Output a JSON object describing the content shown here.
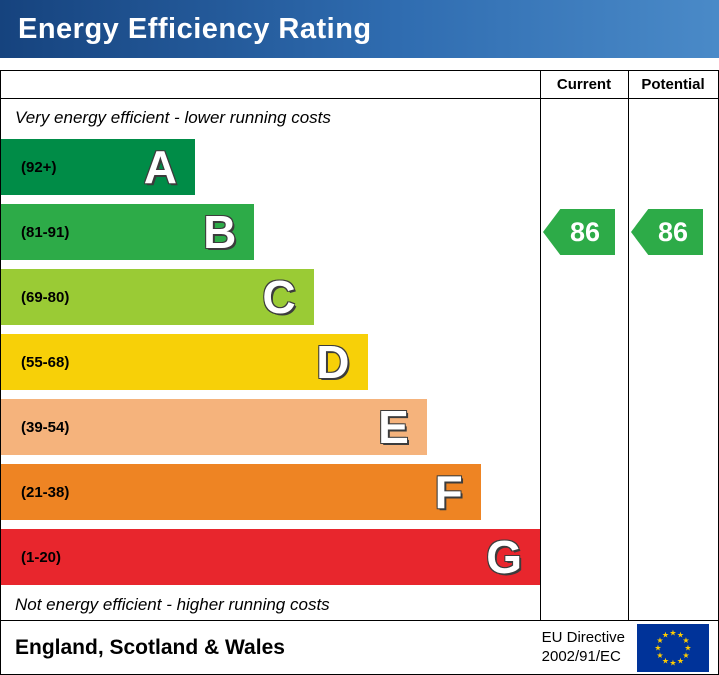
{
  "header": {
    "title": "Energy Efficiency Rating"
  },
  "columns": {
    "current": "Current",
    "potential": "Potential"
  },
  "notes": {
    "top": "Very energy efficient - lower running costs",
    "bottom": "Not energy efficient - higher running costs"
  },
  "bands": [
    {
      "letter": "A",
      "range": "(92+)",
      "color": "#008c47",
      "width_pct": 36
    },
    {
      "letter": "B",
      "range": "(81-91)",
      "color": "#2dab48",
      "width_pct": 47
    },
    {
      "letter": "C",
      "range": "(69-80)",
      "color": "#9acb35",
      "width_pct": 58
    },
    {
      "letter": "D",
      "range": "(55-68)",
      "color": "#f7d008",
      "width_pct": 68
    },
    {
      "letter": "E",
      "range": "(39-54)",
      "color": "#f5b37c",
      "width_pct": 79
    },
    {
      "letter": "F",
      "range": "(21-38)",
      "color": "#ee8423",
      "width_pct": 89
    },
    {
      "letter": "G",
      "range": "(1-20)",
      "color": "#e8262d",
      "width_pct": 100
    }
  ],
  "ratings": {
    "current": {
      "value": "86",
      "color": "#2dab48"
    },
    "potential": {
      "value": "86",
      "color": "#2dab48"
    }
  },
  "footer": {
    "region": "England, Scotland & Wales",
    "directive_line1": "EU Directive",
    "directive_line2": "2002/91/EC"
  },
  "eu_flag": {
    "background": "#003399",
    "star_color": "#ffcc00",
    "star_glyph": "★"
  },
  "chart_data": {
    "type": "bar",
    "title": "Energy Efficiency Rating",
    "categories": [
      "A (92+)",
      "B (81-91)",
      "C (69-80)",
      "D (55-68)",
      "E (39-54)",
      "F (21-38)",
      "G (1-20)"
    ],
    "band_colors": [
      "#008c47",
      "#2dab48",
      "#9acb35",
      "#f7d008",
      "#f5b37c",
      "#ee8423",
      "#e8262d"
    ],
    "band_relative_lengths_pct": [
      36,
      47,
      58,
      68,
      79,
      89,
      100
    ],
    "current_rating": 86,
    "current_band": "B",
    "potential_rating": 86,
    "potential_band": "B",
    "top_annotation": "Very energy efficient - lower running costs",
    "bottom_annotation": "Not energy efficient - higher running costs",
    "region": "England, Scotland & Wales",
    "directive": "EU Directive 2002/91/EC"
  }
}
